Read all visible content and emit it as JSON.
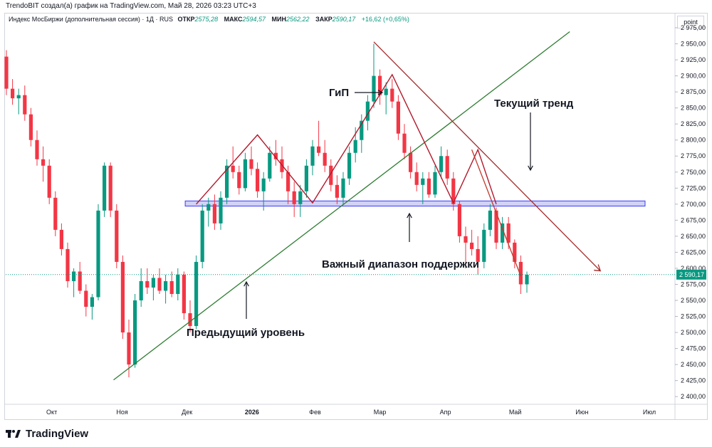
{
  "header": {
    "credit": "TrendoBIT создал(а) график на TradingView.com, Май 28, 2026 03:23 UTC+3",
    "symbol": "Индекс МосБиржи (дополнительная сессия) · 1Д · RUS",
    "ohlc": [
      {
        "label": "ОТКР",
        "value": "2575,28"
      },
      {
        "label": "МАКС",
        "value": "2594,57"
      },
      {
        "label": "МИН",
        "value": "2562,22"
      },
      {
        "label": "ЗАКР",
        "value": "2590,17"
      }
    ],
    "change": "+16,62 (+0,65%)",
    "unit_label": "point"
  },
  "footer": {
    "brand": "TradingView",
    "logo_icon": "tradingview-logo-icon"
  },
  "chart_data": {
    "type": "candlestick",
    "y_ticks": [
      "2 400,00",
      "2 425,00",
      "2 450,00",
      "2 475,00",
      "2 500,00",
      "2 525,00",
      "2 550,00",
      "2 575,00",
      "2 600,00",
      "2 625,00",
      "2 650,00",
      "2 675,00",
      "2 700,00",
      "2 725,00",
      "2 750,00",
      "2 775,00",
      "2 800,00",
      "2 825,00",
      "2 850,00",
      "2 875,00",
      "2 900,00",
      "2 925,00",
      "2 950,00",
      "2 975,00"
    ],
    "y_range": [
      2388,
      2985
    ],
    "x_ticks": [
      "Окт",
      "Ноя",
      "Дек",
      "2026",
      "Фев",
      "Мар",
      "Апр",
      "Май",
      "Июн",
      "Июл"
    ],
    "last_price_label": "2 590,17",
    "last_price": 2590.17,
    "colors": {
      "up": "#089981",
      "down": "#f23645",
      "pattern": "#b2182b",
      "support_line": "#2e7d32",
      "support_zone": "#7b7bf0"
    },
    "annotations": [
      {
        "id": "gip",
        "text": "ГиП"
      },
      {
        "id": "current-trend",
        "text": "Текущий тренд"
      },
      {
        "id": "support-range",
        "text": "Важный диапазон поддержки"
      },
      {
        "id": "previous-level",
        "text": "Предыдущий уровень"
      }
    ],
    "support_zone": [
      2697,
      2705
    ],
    "ascending_line": [
      [
        0,
        2426
      ],
      [
        73,
        2958
      ]
    ],
    "head_and_shoulders": [
      [
        31,
        2700
      ],
      [
        41,
        2808
      ],
      [
        50,
        2702
      ],
      [
        63,
        2902
      ],
      [
        73,
        2702
      ],
      [
        77,
        2785
      ],
      [
        80,
        2700
      ]
    ],
    "descending_trend": [
      [
        60,
        2953
      ],
      [
        94,
        2620
      ]
    ],
    "steep_line": [
      [
        76,
        2785
      ],
      [
        84,
        2588
      ]
    ],
    "candles": [
      [
        2930,
        2940,
        2870,
        2880
      ],
      [
        2880,
        2895,
        2855,
        2865
      ],
      [
        2865,
        2880,
        2840,
        2870
      ],
      [
        2870,
        2885,
        2830,
        2840
      ],
      [
        2840,
        2850,
        2790,
        2800
      ],
      [
        2800,
        2815,
        2760,
        2770
      ],
      [
        2770,
        2790,
        2735,
        2760
      ],
      [
        2760,
        2770,
        2700,
        2710
      ],
      [
        2710,
        2720,
        2650,
        2660
      ],
      [
        2660,
        2670,
        2620,
        2630
      ],
      [
        2630,
        2640,
        2570,
        2580
      ],
      [
        2580,
        2600,
        2555,
        2595
      ],
      [
        2595,
        2610,
        2560,
        2565
      ],
      [
        2565,
        2575,
        2525,
        2540
      ],
      [
        2540,
        2560,
        2520,
        2555
      ],
      [
        2555,
        2700,
        2550,
        2690
      ],
      [
        2690,
        2765,
        2680,
        2760
      ],
      [
        2760,
        2765,
        2680,
        2690
      ],
      [
        2690,
        2700,
        2600,
        2610
      ],
      [
        2610,
        2620,
        2490,
        2500
      ],
      [
        2500,
        2520,
        2430,
        2450
      ],
      [
        2450,
        2560,
        2445,
        2550
      ],
      [
        2550,
        2600,
        2540,
        2580
      ],
      [
        2580,
        2600,
        2560,
        2570
      ],
      [
        2570,
        2590,
        2550,
        2585
      ],
      [
        2585,
        2600,
        2560,
        2565
      ],
      [
        2565,
        2590,
        2545,
        2580
      ],
      [
        2580,
        2595,
        2555,
        2560
      ],
      [
        2560,
        2600,
        2550,
        2590
      ],
      [
        2590,
        2595,
        2520,
        2530
      ],
      [
        2530,
        2550,
        2500,
        2510
      ],
      [
        2510,
        2620,
        2505,
        2610
      ],
      [
        2610,
        2700,
        2600,
        2690
      ],
      [
        2690,
        2710,
        2665,
        2700
      ],
      [
        2700,
        2715,
        2660,
        2670
      ],
      [
        2670,
        2720,
        2660,
        2710
      ],
      [
        2710,
        2770,
        2700,
        2760
      ],
      [
        2760,
        2790,
        2740,
        2750
      ],
      [
        2750,
        2760,
        2715,
        2725
      ],
      [
        2725,
        2780,
        2720,
        2770
      ],
      [
        2770,
        2790,
        2745,
        2755
      ],
      [
        2755,
        2765,
        2710,
        2720
      ],
      [
        2720,
        2750,
        2690,
        2740
      ],
      [
        2740,
        2790,
        2735,
        2780
      ],
      [
        2780,
        2800,
        2760,
        2770
      ],
      [
        2770,
        2790,
        2740,
        2750
      ],
      [
        2750,
        2760,
        2700,
        2720
      ],
      [
        2720,
        2735,
        2680,
        2700
      ],
      [
        2700,
        2730,
        2680,
        2720
      ],
      [
        2720,
        2770,
        2710,
        2760
      ],
      [
        2760,
        2800,
        2745,
        2790
      ],
      [
        2790,
        2830,
        2775,
        2780
      ],
      [
        2780,
        2800,
        2750,
        2760
      ],
      [
        2760,
        2770,
        2720,
        2730
      ],
      [
        2730,
        2745,
        2700,
        2710
      ],
      [
        2710,
        2750,
        2700,
        2740
      ],
      [
        2740,
        2790,
        2730,
        2780
      ],
      [
        2780,
        2820,
        2765,
        2800
      ],
      [
        2800,
        2840,
        2780,
        2830
      ],
      [
        2830,
        2870,
        2815,
        2860
      ],
      [
        2860,
        2950,
        2850,
        2900
      ],
      [
        2900,
        2910,
        2855,
        2870
      ],
      [
        2870,
        2890,
        2840,
        2880
      ],
      [
        2880,
        2895,
        2850,
        2860
      ],
      [
        2860,
        2870,
        2800,
        2810
      ],
      [
        2810,
        2825,
        2770,
        2780
      ],
      [
        2780,
        2790,
        2740,
        2750
      ],
      [
        2750,
        2765,
        2720,
        2730
      ],
      [
        2730,
        2750,
        2700,
        2740
      ],
      [
        2740,
        2750,
        2710,
        2715
      ],
      [
        2715,
        2760,
        2710,
        2750
      ],
      [
        2750,
        2790,
        2740,
        2775
      ],
      [
        2775,
        2785,
        2730,
        2740
      ],
      [
        2740,
        2750,
        2690,
        2700
      ],
      [
        2700,
        2705,
        2640,
        2650
      ],
      [
        2650,
        2665,
        2600,
        2640
      ],
      [
        2640,
        2660,
        2620,
        2630
      ],
      [
        2630,
        2650,
        2590,
        2610
      ],
      [
        2610,
        2670,
        2600,
        2660
      ],
      [
        2660,
        2700,
        2650,
        2690
      ],
      [
        2690,
        2695,
        2630,
        2640
      ],
      [
        2640,
        2680,
        2630,
        2670
      ],
      [
        2670,
        2680,
        2630,
        2640
      ],
      [
        2640,
        2645,
        2600,
        2610
      ],
      [
        2610,
        2620,
        2560,
        2575
      ],
      [
        2575,
        2595,
        2562,
        2590
      ]
    ]
  }
}
